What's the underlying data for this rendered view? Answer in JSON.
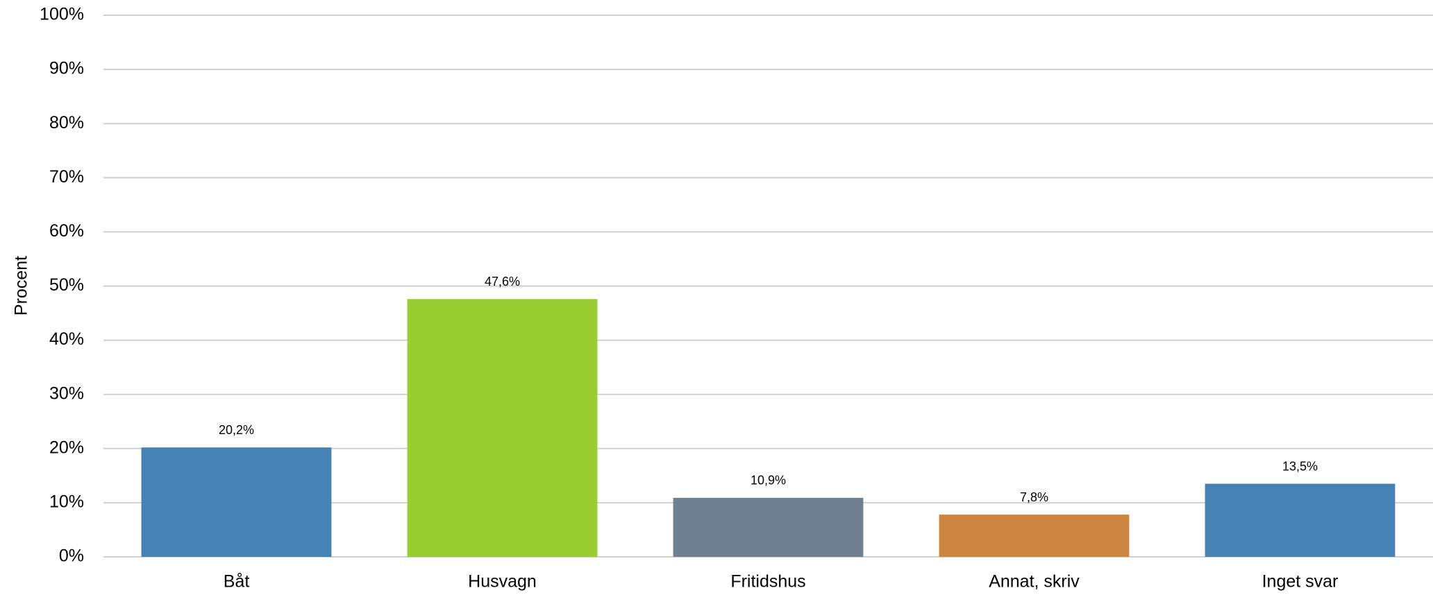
{
  "chart_data": {
    "type": "bar",
    "ylabel": "Procent",
    "categories": [
      "Båt",
      "Husvagn",
      "Fritidshus",
      "Annat, skriv",
      "Inget svar"
    ],
    "values": [
      20.2,
      47.6,
      10.9,
      7.8,
      13.5
    ],
    "value_labels": [
      "20,2%",
      "47,6%",
      "10,9%",
      "7,8%",
      "13,5%"
    ],
    "colors": [
      "#4682b4",
      "#9acd32",
      "#708090",
      "#cd853f",
      "#4682b4"
    ],
    "ylim": [
      0,
      100
    ],
    "yticks": [
      {
        "value": 0,
        "label": "0%"
      },
      {
        "value": 10,
        "label": "10%"
      },
      {
        "value": 20,
        "label": "20%"
      },
      {
        "value": 30,
        "label": "30%"
      },
      {
        "value": 40,
        "label": "40%"
      },
      {
        "value": 50,
        "label": "50%"
      },
      {
        "value": 60,
        "label": "60%"
      },
      {
        "value": 70,
        "label": "70%"
      },
      {
        "value": 80,
        "label": "80%"
      },
      {
        "value": 90,
        "label": "90%"
      },
      {
        "value": 100,
        "label": "100%"
      }
    ],
    "grid": true
  }
}
